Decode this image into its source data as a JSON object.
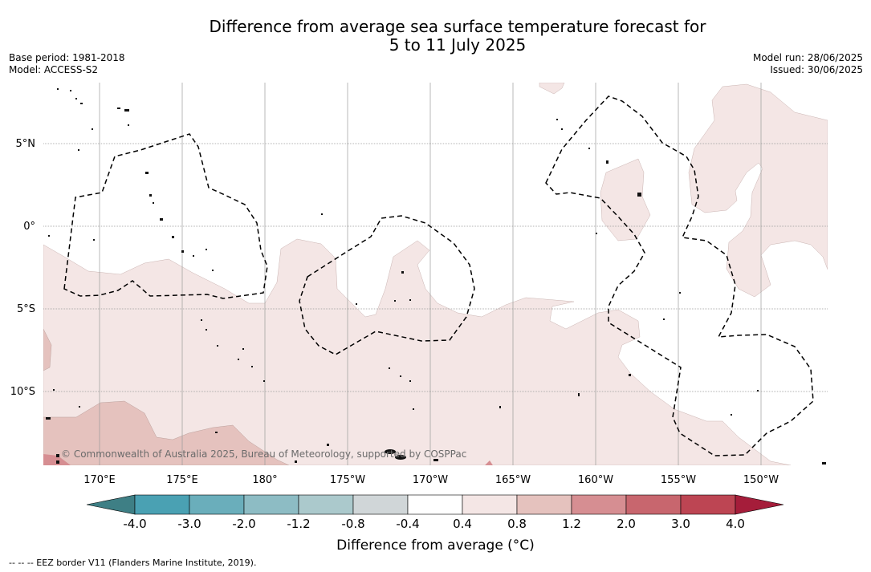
{
  "title_line1": "Difference from average sea surface temperature forecast for",
  "title_line2": "5 to 11 July 2025",
  "meta_left": {
    "base_period": "Base period: 1981-2018",
    "model": "Model: ACCESS-S2"
  },
  "meta_right": {
    "model_run": "Model run: 28/06/2025",
    "issued": "Issued: 30/06/2025"
  },
  "copyright": "© Commonwealth of Australia 2025, Bureau of Meteorology, supported by COSPPac",
  "lat_labels": [
    "5°N",
    "0°",
    "5°S",
    "10°S"
  ],
  "lon_labels": [
    "170°E",
    "175°E",
    "180°",
    "175°W",
    "170°W",
    "165°W",
    "160°W",
    "155°W",
    "150°W"
  ],
  "colorbar": {
    "label": "Difference from average (°C)",
    "ticks": [
      "-4.0",
      "-3.0",
      "-2.0",
      "-1.2",
      "-0.8",
      "-0.4",
      "0.4",
      "0.8",
      "1.2",
      "2.0",
      "3.0",
      "4.0"
    ],
    "colors": [
      "#4aa1b3",
      "#6aaebb",
      "#8dbcc4",
      "#abc9cc",
      "#d0d6d8",
      "#ffffff",
      "#f4e6e5",
      "#e5c2be",
      "#d68e92",
      "#c8666e",
      "#bd4553"
    ],
    "min_color": "#3e7f85",
    "max_color": "#a51d3a"
  },
  "legend_note": "--  --  -- EEZ border V11 (Flanders Marine Institute, 2019).",
  "map_colors": {
    "light": "#f4e6e5",
    "medium": "#e5c2be",
    "dark": "#d68e92"
  }
}
